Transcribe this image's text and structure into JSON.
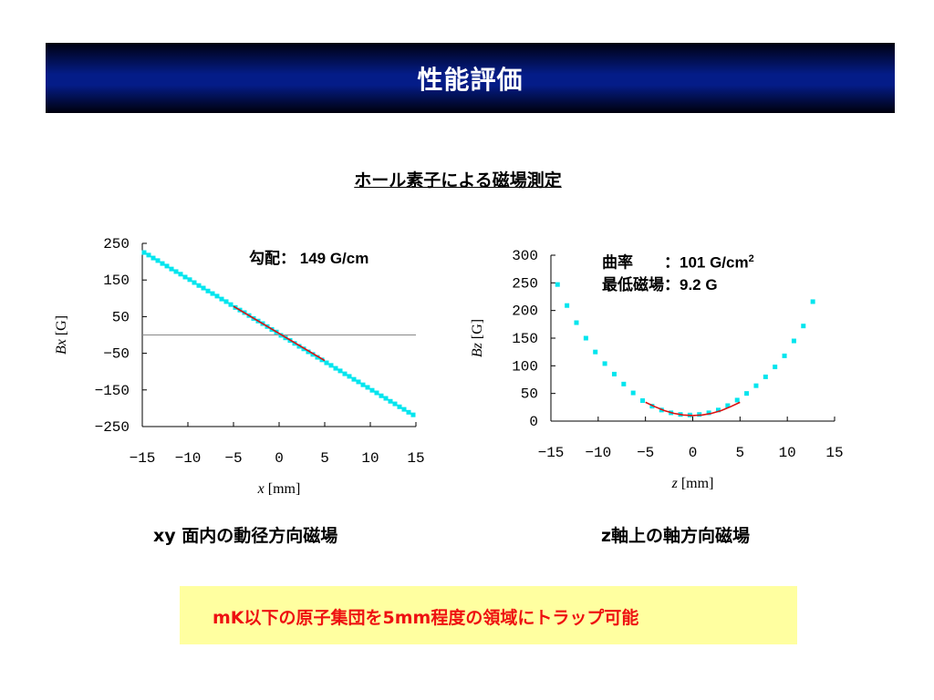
{
  "slide": {
    "title": "性能評価",
    "subtitle": "ホール素子による磁場測定",
    "note": "mK以下の原子集団を5mm程度の領域にトラップ可能"
  },
  "left_panel": {
    "caption": "xy 面内の動径方向磁場",
    "annotation": {
      "label": "勾配：",
      "value": "149 G/cm"
    }
  },
  "right_panel": {
    "caption": "z軸上の軸方向磁場",
    "annotation": {
      "line1_label": "曲率　　：",
      "line1_value": "101 G/cm",
      "line1_sup": "2",
      "line2_label": "最低磁場：",
      "line2_value": "9.2 G"
    }
  },
  "colors": {
    "points": "#00e5ee",
    "fit": "#dd1111",
    "note_text": "#ee1111",
    "note_bg": "#ffffa0",
    "title_bg": "#041c88"
  },
  "chart_data": [
    {
      "type": "scatter",
      "xlabel": {
        "var": "x",
        "unit": "[mm]"
      },
      "ylabel": {
        "var": "Bx",
        "unit": "[G]"
      },
      "xlim": [
        -15,
        15
      ],
      "ylim": [
        -250,
        250
      ],
      "xticks": [
        -15,
        -10,
        -5,
        0,
        5,
        10,
        15
      ],
      "yticks": [
        -250,
        -150,
        -50,
        50,
        150,
        250
      ],
      "reference_line_y": 0,
      "series": [
        {
          "x": [
            -14.8,
            -14.3,
            -13.8,
            -13.3,
            -12.8,
            -12.3,
            -11.8,
            -11.3,
            -10.8,
            -10.3,
            -9.8,
            -9.3,
            -8.8,
            -8.3,
            -7.8,
            -7.3,
            -6.8,
            -6.3,
            -5.8,
            -5.3,
            -4.8,
            -4.3,
            -3.8,
            -3.3,
            -2.8,
            -2.3,
            -1.8,
            -1.3,
            -0.8,
            -0.3,
            0.2,
            0.7,
            1.2,
            1.7,
            2.2,
            2.7,
            3.2,
            3.7,
            4.2,
            4.7,
            5.2,
            5.7,
            6.2,
            6.7,
            7.2,
            7.7,
            8.2,
            8.7,
            9.2,
            9.7,
            10.2,
            10.7,
            11.2,
            11.7,
            12.2,
            12.7,
            13.2,
            13.7,
            14.2,
            14.7
          ],
          "y": [
            225,
            218,
            210,
            203,
            195,
            188,
            180,
            173,
            166,
            158,
            151,
            143,
            135,
            128,
            120,
            113,
            106,
            98,
            91,
            83,
            75,
            68,
            61,
            53,
            45,
            38,
            31,
            23,
            15,
            8,
            -1,
            -8,
            -15,
            -23,
            -31,
            -38,
            -46,
            -53,
            -61,
            -68,
            -76,
            -83,
            -91,
            -98,
            -106,
            -113,
            -121,
            -128,
            -136,
            -143,
            -151,
            -158,
            -166,
            -173,
            -181,
            -188,
            -196,
            -203,
            -211,
            -218
          ]
        }
      ],
      "fit": {
        "x": [
          -5,
          5
        ],
        "y": [
          78,
          -70
        ]
      }
    },
    {
      "type": "scatter",
      "xlabel": {
        "var": "z",
        "unit": "[mm]"
      },
      "ylabel": {
        "var": "Bz",
        "unit": "[G]"
      },
      "xlim": [
        -15,
        15
      ],
      "ylim": [
        0,
        300
      ],
      "xticks": [
        -15,
        -10,
        -5,
        0,
        5,
        10,
        15
      ],
      "yticks": [
        0,
        50,
        100,
        150,
        200,
        250,
        300
      ],
      "series": [
        {
          "x": [
            -14.3,
            -13.3,
            -12.3,
            -11.3,
            -10.3,
            -9.3,
            -8.3,
            -7.3,
            -6.3,
            -5.3,
            -4.3,
            -3.3,
            -2.3,
            -1.3,
            -0.3,
            0.7,
            1.7,
            2.7,
            3.7,
            4.7,
            5.7,
            6.7,
            7.7,
            8.7,
            9.7,
            10.7,
            11.7,
            12.7
          ],
          "y": [
            247,
            209,
            178,
            150,
            125,
            104,
            85,
            67,
            51,
            37,
            27,
            20,
            15,
            12,
            11,
            12,
            15,
            20,
            28,
            38,
            50,
            64,
            80,
            98,
            118,
            145,
            172,
            216
          ]
        }
      ],
      "fit": {
        "x": [
          -5,
          -4,
          -3,
          -2,
          -1,
          0,
          1,
          2,
          3,
          4,
          5
        ],
        "y": [
          34,
          26,
          19,
          14,
          11,
          10,
          11,
          14,
          19,
          26,
          34
        ]
      }
    }
  ]
}
